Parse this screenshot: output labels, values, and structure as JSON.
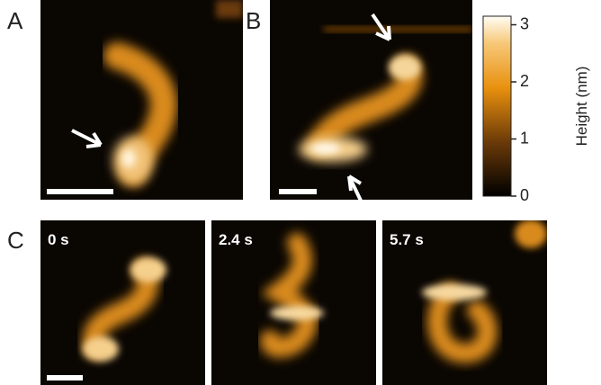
{
  "panels": {
    "a": {
      "label": "A"
    },
    "b": {
      "label": "B"
    },
    "c": {
      "label": "C",
      "frames": [
        "0 s",
        "2.4 s",
        "5.7 s"
      ]
    }
  },
  "colorbar": {
    "label": "Height (nm)",
    "lim": [
      0,
      3.15
    ],
    "ticks": [
      0,
      1,
      2,
      3
    ]
  }
}
